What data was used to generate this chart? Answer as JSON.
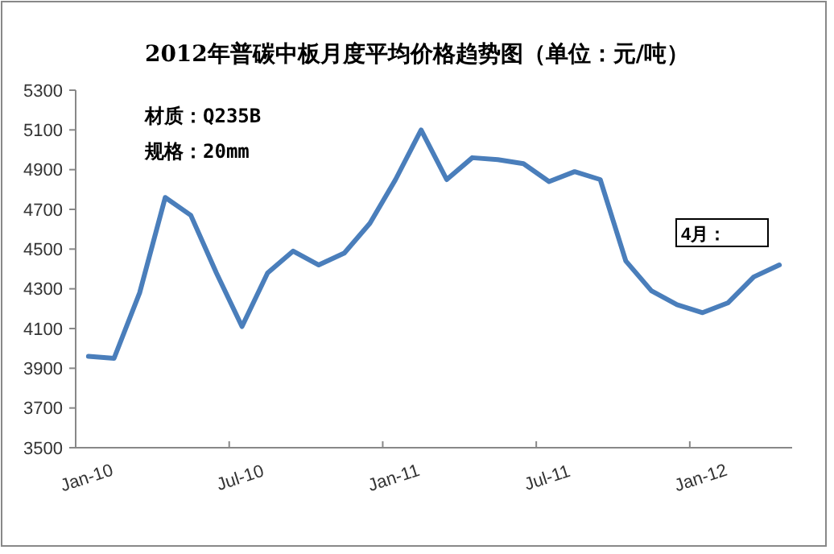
{
  "chart_data": {
    "type": "line",
    "title": "2012年普碳中板月度平均价格趋势图（单位：元/吨）",
    "categories": [
      "Jan-10",
      null,
      null,
      null,
      null,
      null,
      "Jul-10",
      null,
      null,
      null,
      null,
      null,
      "Jan-11",
      null,
      null,
      null,
      null,
      null,
      "Jul-11",
      null,
      null,
      null,
      null,
      null,
      "Jan-12",
      null,
      null,
      null
    ],
    "series": [
      {
        "color": "#4a7ebb",
        "values": [
          3960,
          3950,
          4280,
          4760,
          4670,
          4380,
          4110,
          4380,
          4490,
          4420,
          4480,
          4630,
          4850,
          5100,
          4850,
          4960,
          4950,
          4930,
          4840,
          4890,
          4850,
          4440,
          4290,
          4220,
          4180,
          4230,
          4360,
          4420
        ]
      }
    ],
    "ylim": [
      3500,
      5300
    ],
    "yticks": [
      3500,
      3700,
      3900,
      4100,
      4300,
      4500,
      4700,
      4900,
      5100,
      5300
    ],
    "grid": false,
    "marker": "none",
    "line_style": "solid",
    "annotations": [
      "材质：Q235B",
      "规格：20mm",
      "4月："
    ]
  }
}
